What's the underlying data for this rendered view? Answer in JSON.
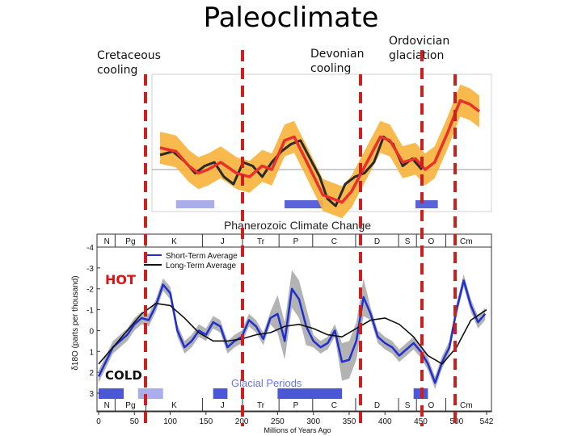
{
  "slide": {
    "title": "Paleoclimate",
    "callouts": [
      {
        "lines": [
          "Cretaceous",
          "cooling"
        ]
      },
      {
        "lines": [
          "Devonian",
          "cooling"
        ]
      },
      {
        "lines": [
          "Ordovician",
          "glaciation"
        ]
      }
    ],
    "marker_color": "#cc1f1f"
  },
  "chart_data": [
    {
      "type": "line",
      "title": "",
      "xlabel": "",
      "ylabel": "",
      "x_reversed": false,
      "series": [
        {
          "color": "#e8302c",
          "band_color": "#f7b13a",
          "x": [
            0,
            25,
            45,
            60,
            75,
            95,
            120,
            140,
            160,
            175,
            195,
            210,
            230,
            255,
            270,
            285,
            300,
            315,
            330,
            345,
            360,
            380,
            400,
            415,
            430,
            450,
            470,
            485,
            500
          ],
          "y": [
            0.3,
            0.25,
            0.05,
            -0.05,
            0.0,
            0.1,
            -0.05,
            -0.1,
            0.05,
            0.0,
            0.4,
            0.45,
            0.1,
            -0.35,
            -0.4,
            -0.45,
            -0.3,
            -0.05,
            0.2,
            0.45,
            0.4,
            0.1,
            0.15,
            0.0,
            0.1,
            0.5,
            0.95,
            0.9,
            0.8
          ]
        },
        {
          "color": "#2a2a2a",
          "x": [
            0,
            20,
            40,
            55,
            70,
            85,
            100,
            115,
            130,
            145,
            160,
            175,
            190,
            205,
            220,
            235,
            250,
            262,
            275,
            290,
            305,
            320,
            335,
            350,
            365,
            380,
            395,
            410
          ],
          "y": [
            0.2,
            0.25,
            0.1,
            -0.05,
            0.05,
            0.1,
            -0.1,
            -0.2,
            0.1,
            0.05,
            -0.1,
            0.1,
            0.25,
            0.35,
            0.4,
            0.15,
            -0.1,
            -0.4,
            -0.5,
            -0.2,
            -0.1,
            -0.05,
            0.1,
            0.45,
            0.35,
            0.05,
            0.15,
            0.0
          ]
        }
      ],
      "glacial_periods": [
        [
          25,
          85
        ],
        [
          195,
          255
        ],
        [
          400,
          435
        ]
      ]
    },
    {
      "type": "line",
      "title": "Phanerozoic Climate Change",
      "xlabel": "Millions of Years Ago",
      "ylabel": "δ18O (parts per thousand)",
      "xlim": [
        0,
        542
      ],
      "ylim": [
        3,
        -4
      ],
      "x_ticks": [
        0,
        50,
        100,
        150,
        200,
        250,
        300,
        350,
        400,
        450,
        500,
        542
      ],
      "y_ticks": [
        -4,
        -3,
        -2,
        -1,
        0,
        1,
        2,
        3
      ],
      "legend": [
        "Short-Term Average",
        "Long-Term Average"
      ],
      "legend_position": "top-left",
      "hot_label": "HOT",
      "cold_label": "COLD",
      "glacial_label": "Glacial Periods",
      "periods": [
        "N",
        "Pg",
        "K",
        "J",
        "Tr",
        "P",
        "C",
        "D",
        "S",
        "O",
        "Cm"
      ],
      "period_bounds": [
        0,
        23,
        66,
        145,
        201,
        252,
        299,
        359,
        419,
        444,
        485,
        542
      ],
      "series": [
        {
          "name": "Short-Term Average",
          "color": "#1f2fd0",
          "band_color": "#9a9a9a",
          "x": [
            0,
            10,
            20,
            30,
            40,
            50,
            60,
            70,
            80,
            90,
            100,
            110,
            120,
            130,
            140,
            150,
            160,
            170,
            180,
            190,
            200,
            210,
            220,
            230,
            240,
            250,
            260,
            270,
            280,
            290,
            300,
            310,
            320,
            330,
            340,
            350,
            360,
            370,
            380,
            390,
            400,
            410,
            420,
            430,
            440,
            450,
            460,
            470,
            480,
            490,
            500,
            510,
            520,
            530,
            540
          ],
          "y": [
            2.2,
            1.5,
            0.8,
            0.5,
            0.2,
            -0.3,
            -0.6,
            -0.5,
            -1.2,
            -2.2,
            -1.8,
            0.0,
            0.8,
            0.5,
            0.0,
            0.2,
            -0.4,
            -0.2,
            0.8,
            0.5,
            0.3,
            -0.5,
            -0.2,
            0.4,
            -0.6,
            -0.8,
            0.5,
            -2.0,
            -1.5,
            -0.2,
            0.5,
            0.8,
            0.6,
            0.0,
            1.5,
            1.4,
            0.5,
            -1.6,
            -0.8,
            0.3,
            0.6,
            0.8,
            1.2,
            0.9,
            0.6,
            1.0,
            1.6,
            2.5,
            1.5,
            0.8,
            -1.0,
            -2.4,
            -1.2,
            -0.4,
            -0.8
          ]
        },
        {
          "name": "Long-Term Average",
          "color": "#111111",
          "x": [
            0,
            20,
            40,
            60,
            80,
            100,
            120,
            140,
            160,
            180,
            200,
            220,
            240,
            260,
            280,
            300,
            320,
            340,
            360,
            380,
            400,
            420,
            440,
            460,
            480,
            500,
            520,
            542
          ],
          "y": [
            1.6,
            0.8,
            0.0,
            -0.8,
            -1.3,
            -1.2,
            -0.6,
            0.1,
            0.5,
            0.5,
            0.4,
            0.2,
            0.1,
            -0.2,
            -0.3,
            -0.1,
            0.2,
            0.3,
            -0.1,
            -0.5,
            -0.6,
            -0.3,
            0.3,
            1.2,
            1.6,
            0.8,
            -0.5,
            -1.0
          ]
        }
      ],
      "glacial_periods": [
        [
          0,
          35
        ],
        [
          55,
          90
        ],
        [
          160,
          180
        ],
        [
          250,
          340
        ],
        [
          440,
          460
        ]
      ]
    }
  ]
}
